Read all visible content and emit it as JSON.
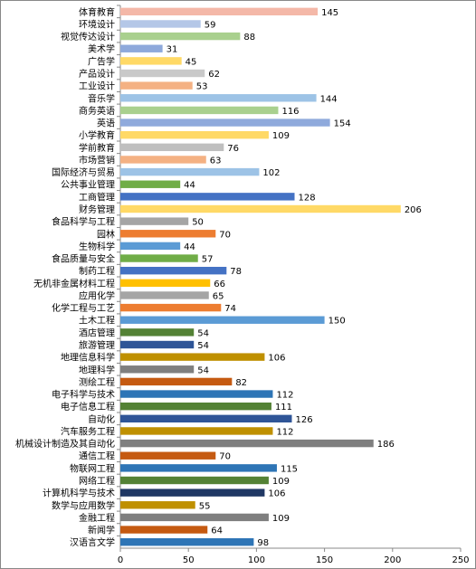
{
  "chart_data": {
    "type": "bar",
    "orientation": "horizontal",
    "categories": [
      "体育教育",
      "环境设计",
      "视觉传达设计",
      "美术学",
      "广告学",
      "产品设计",
      "工业设计",
      "音乐学",
      "商务英语",
      "英语",
      "小学教育",
      "学前教育",
      "市场营销",
      "国际经济与贸易",
      "公共事业管理",
      "工商管理",
      "财务管理",
      "食品科学与工程",
      "园林",
      "生物科学",
      "食品质量与安全",
      "制药工程",
      "无机非金属材料工程",
      "应用化学",
      "化学工程与工艺",
      "土木工程",
      "酒店管理",
      "旅游管理",
      "地理信息科学",
      "地理科学",
      "测绘工程",
      "电子科学与技术",
      "电子信息工程",
      "自动化",
      "汽车服务工程",
      "机械设计制造及其自动化",
      "通信工程",
      "物联网工程",
      "网络工程",
      "计算机科学与技术",
      "数学与应用数学",
      "金融工程",
      "新闻学",
      "汉语言文学"
    ],
    "values": [
      145,
      59,
      88,
      31,
      45,
      62,
      53,
      144,
      116,
      154,
      109,
      76,
      63,
      102,
      44,
      128,
      206,
      50,
      70,
      44,
      57,
      78,
      66,
      65,
      74,
      150,
      54,
      54,
      106,
      54,
      82,
      112,
      111,
      126,
      112,
      186,
      70,
      115,
      109,
      106,
      55,
      109,
      64,
      98
    ],
    "colors": [
      "#f4b8a8",
      "#b4c7e7",
      "#a9d08e",
      "#8ea9db",
      "#ffd966",
      "#c9c9c9",
      "#f4b183",
      "#9dc3e6",
      "#a9d08e",
      "#8faadc",
      "#ffd966",
      "#bfbfbf",
      "#f4b183",
      "#9dc3e6",
      "#70ad47",
      "#4472c4",
      "#ffd966",
      "#a5a5a5",
      "#ed7d31",
      "#5b9bd5",
      "#70ad47",
      "#4472c4",
      "#ffc000",
      "#a5a5a5",
      "#ed7d31",
      "#5b9bd5",
      "#548235",
      "#2f5597",
      "#bf9000",
      "#7f7f7f",
      "#c55a11",
      "#2e75b6",
      "#548235",
      "#2f5597",
      "#bf9000",
      "#7f7f7f",
      "#c55a11",
      "#2e75b6",
      "#548235",
      "#203864",
      "#bf9000",
      "#7f7f7f",
      "#c55a11",
      "#2e75b6"
    ],
    "xlim": [
      0,
      250
    ],
    "xticks": [
      0,
      50,
      100,
      150,
      200,
      250
    ],
    "grid": false
  }
}
